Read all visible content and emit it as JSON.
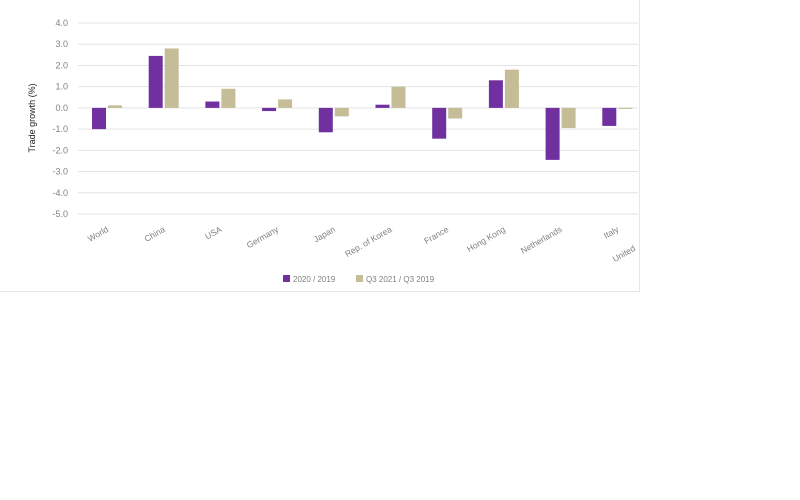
{
  "chart_data": {
    "type": "bar",
    "title": "",
    "xlabel": "",
    "ylabel": "Trade growth (%)",
    "ylim": [
      -5.0,
      4.0
    ],
    "yticks": [
      "4.0",
      "3.0",
      "2.0",
      "1.0",
      "0.0",
      "-1.0",
      "-2.0",
      "-3.0",
      "-4.0",
      "-5.0"
    ],
    "grid": true,
    "legend_position": "bottom",
    "categories": [
      "World",
      "China",
      "USA",
      "Germany",
      "Japan",
      "Rep. of Korea",
      "France",
      "Hong Kong",
      "Netherlands",
      "Italy",
      "United"
    ],
    "series": [
      {
        "name": "2020 / 2019",
        "color": "#7030a0",
        "values": [
          -1.0,
          2.45,
          0.3,
          -0.15,
          -1.15,
          0.15,
          -1.45,
          1.3,
          -2.45,
          -0.85,
          null
        ]
      },
      {
        "name": "Q3 2021 / Q3 2019",
        "color": "#c4bd97",
        "values": [
          0.12,
          2.8,
          0.9,
          0.4,
          -0.4,
          1.0,
          -0.5,
          1.8,
          -0.95,
          -0.05,
          null
        ]
      }
    ]
  }
}
